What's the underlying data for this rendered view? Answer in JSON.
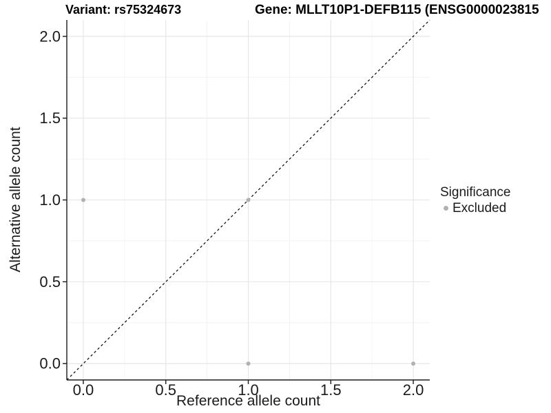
{
  "chart_data": {
    "type": "scatter",
    "titles": {
      "left": "Variant: rs75324673",
      "right": "Gene: MLLT10P1-DEFB115 (ENSG0000023815"
    },
    "xlabel": "Reference allele count",
    "ylabel": "Alternative allele count",
    "xlim": [
      -0.1,
      2.1
    ],
    "ylim": [
      -0.1,
      2.1
    ],
    "xticks": {
      "values": [
        0,
        0.5,
        1,
        1.5,
        2
      ],
      "labels": [
        "0.0",
        "0.5",
        "1.0",
        "1.5",
        "2.0"
      ]
    },
    "yticks": {
      "values": [
        0,
        0.5,
        1,
        1.5,
        2
      ],
      "labels": [
        "0.0",
        "0.5",
        "1.0",
        "1.5",
        "2.0"
      ]
    },
    "minor_ticks": [
      0.25,
      0.75,
      1.25,
      1.75
    ],
    "grid": {
      "major_on": true,
      "minor_on": true
    },
    "series": [
      {
        "name": "Excluded",
        "color": "#b1b1b1",
        "points": [
          {
            "x": 0,
            "y": 1
          },
          {
            "x": 1,
            "y": 1
          },
          {
            "x": 1,
            "y": 0
          },
          {
            "x": 2,
            "y": 0
          }
        ]
      }
    ],
    "reference_line": {
      "kind": "identity",
      "x1": -0.1,
      "y1": -0.1,
      "x2": 2.1,
      "y2": 2.1,
      "style": "dashed",
      "color": "#000000"
    },
    "legend": {
      "position": "right",
      "title": "Significance",
      "items": [
        {
          "label": "Excluded",
          "color": "#b1b1b1"
        }
      ]
    },
    "colors": {
      "background": "#ffffff",
      "major_grid": "#e4e4e4",
      "minor_grid": "#f1f1f1",
      "axis_line": "#1a1a1a",
      "tick_label": "#1a1a1a",
      "point": "#b1b1b1"
    }
  }
}
